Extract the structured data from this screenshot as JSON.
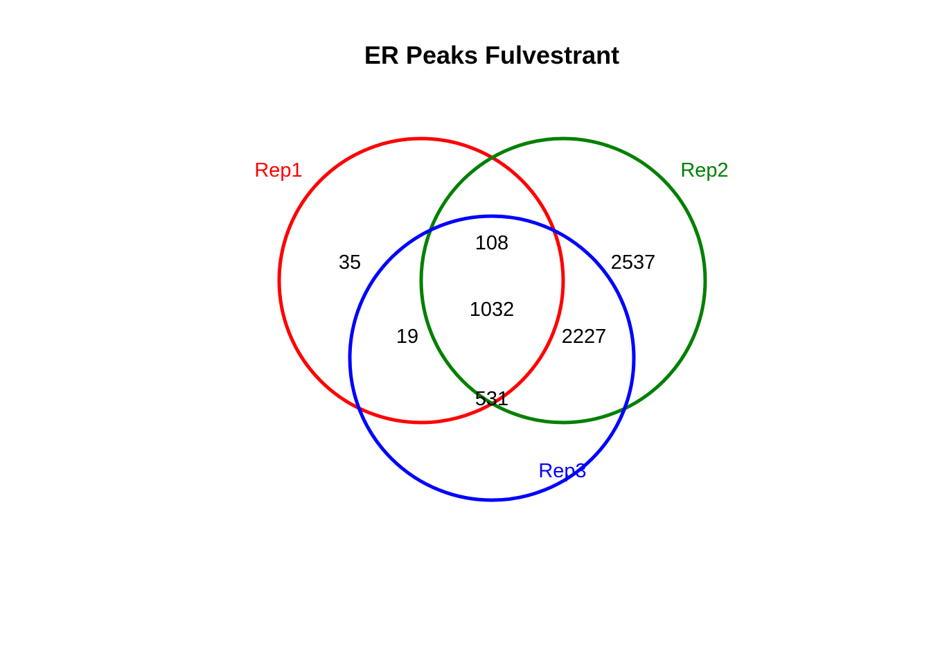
{
  "title": "ER Peaks Fulvestrant",
  "sets": [
    {
      "id": "rep1",
      "label": "Rep1",
      "color": "#ff0000"
    },
    {
      "id": "rep2",
      "label": "Rep2",
      "color": "#008000"
    },
    {
      "id": "rep3",
      "label": "Rep3",
      "color": "#0000ff"
    }
  ],
  "regions": {
    "rep1_only": "35",
    "rep2_only": "2537",
    "rep1_rep2_only": "108",
    "all_three": "1032",
    "rep1_rep3_only": "19",
    "rep2_rep3_only": "2227",
    "rep3_only": "531"
  }
}
